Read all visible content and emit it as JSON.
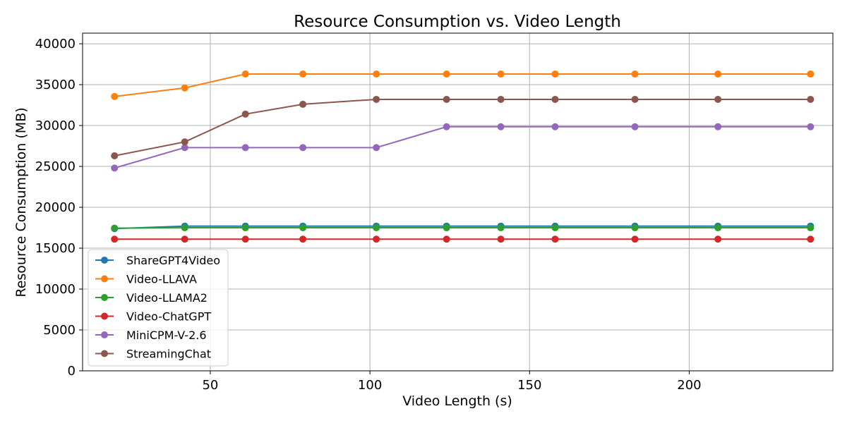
{
  "chart_data": {
    "type": "line",
    "title": "Resource Consumption vs. Video Length",
    "xlabel": "Video Length (s)",
    "ylabel": "Resource Consumption (MB)",
    "xlim": [
      10,
      245
    ],
    "ylim": [
      0,
      41300
    ],
    "xticks": [
      50,
      100,
      150,
      200
    ],
    "yticks": [
      0,
      5000,
      10000,
      15000,
      20000,
      25000,
      30000,
      35000,
      40000
    ],
    "grid": true,
    "legend_position": "lower-left",
    "x": [
      20,
      42,
      61,
      79,
      102,
      124,
      141,
      158,
      183,
      209,
      238
    ],
    "series": [
      {
        "name": "ShareGPT4Video",
        "color": "#1f77b4",
        "values": [
          17400,
          17700,
          17700,
          17700,
          17700,
          17700,
          17700,
          17700,
          17700,
          17700,
          17700
        ]
      },
      {
        "name": "Video-LLAVA",
        "color": "#ff7f0e",
        "values": [
          33550,
          34600,
          36300,
          36300,
          36300,
          36300,
          36300,
          36300,
          36300,
          36300,
          36300
        ]
      },
      {
        "name": "Video-LLAMA2",
        "color": "#2ca02c",
        "values": [
          17450,
          17500,
          17500,
          17500,
          17500,
          17500,
          17500,
          17500,
          17500,
          17500,
          17500
        ]
      },
      {
        "name": "Video-ChatGPT",
        "color": "#d62728",
        "values": [
          16100,
          16100,
          16100,
          16100,
          16100,
          16100,
          16100,
          16100,
          16100,
          16100,
          16100
        ]
      },
      {
        "name": "MiniCPM-V-2.6",
        "color": "#9467bd",
        "values": [
          24800,
          27300,
          27300,
          27300,
          27300,
          29850,
          29850,
          29850,
          29850,
          29850,
          29850
        ]
      },
      {
        "name": "StreamingChat",
        "color": "#8c564b",
        "values": [
          26300,
          28000,
          31400,
          32600,
          33200,
          33200,
          33200,
          33200,
          33200,
          33200,
          33200
        ]
      }
    ]
  }
}
